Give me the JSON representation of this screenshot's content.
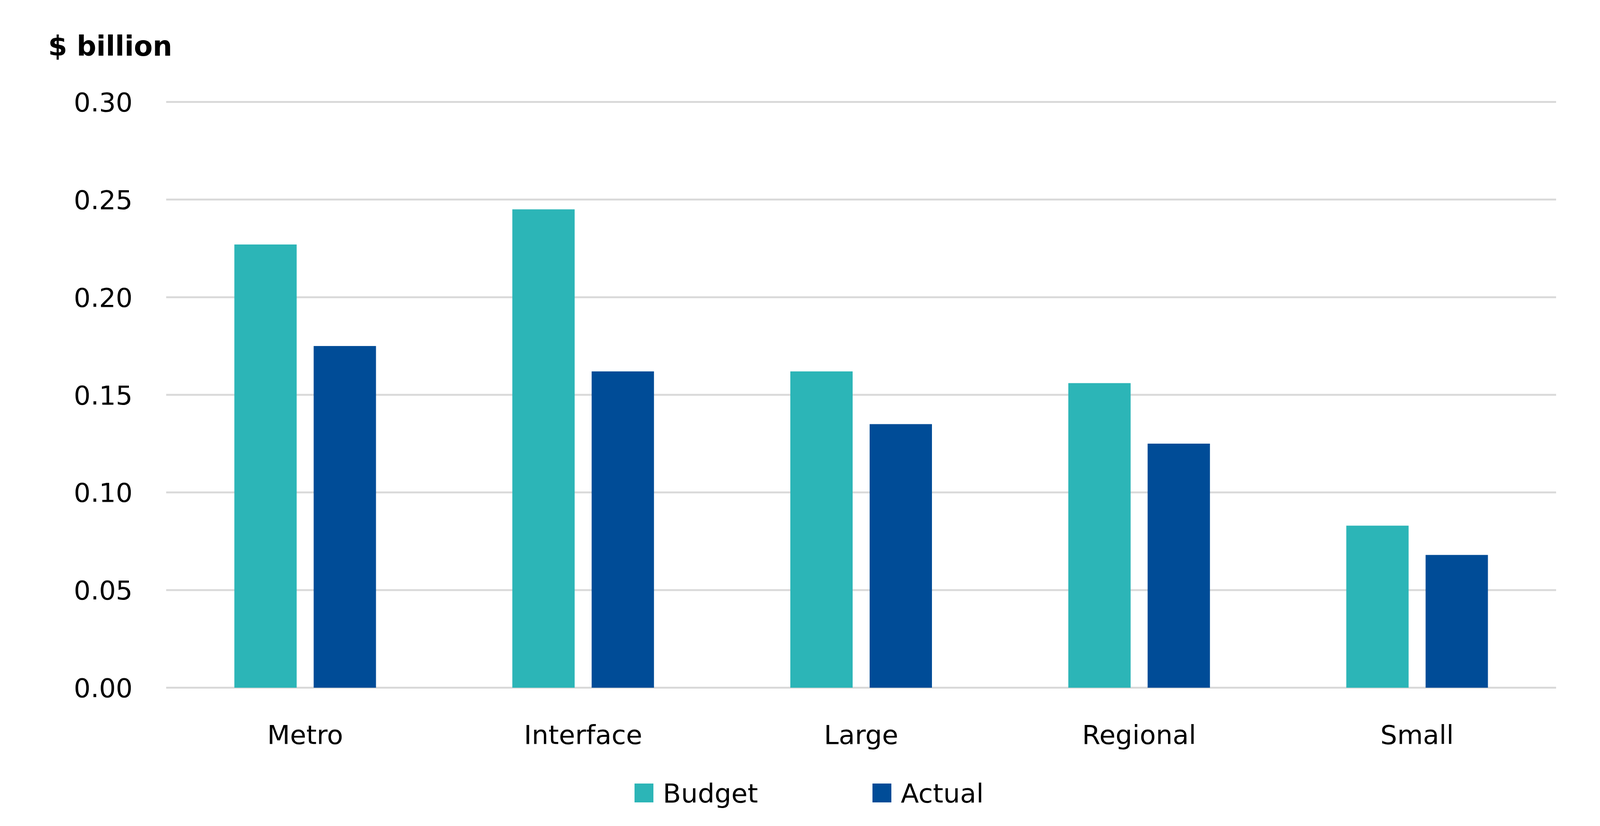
{
  "chart_data": {
    "type": "bar",
    "y_label": "$ billion",
    "categories": [
      "Metro",
      "Interface",
      "Large",
      "Regional",
      "Small"
    ],
    "series": [
      {
        "name": "Budget",
        "color": "#2cb5b7",
        "values": [
          0.227,
          0.245,
          0.162,
          0.156,
          0.083
        ]
      },
      {
        "name": "Actual",
        "color": "#004c97",
        "values": [
          0.175,
          0.162,
          0.135,
          0.125,
          0.068
        ]
      }
    ],
    "ylim": [
      0,
      0.3
    ],
    "yticks": [
      {
        "value": 0,
        "label": "0.00"
      },
      0.05,
      {
        "value": 0.1,
        "label": "0.10"
      },
      0.15,
      {
        "value": 0.2,
        "label": "0.20"
      },
      0.25,
      {
        "value": 0.3,
        "label": "0.30"
      }
    ],
    "grid": true,
    "legend": "bottom"
  }
}
